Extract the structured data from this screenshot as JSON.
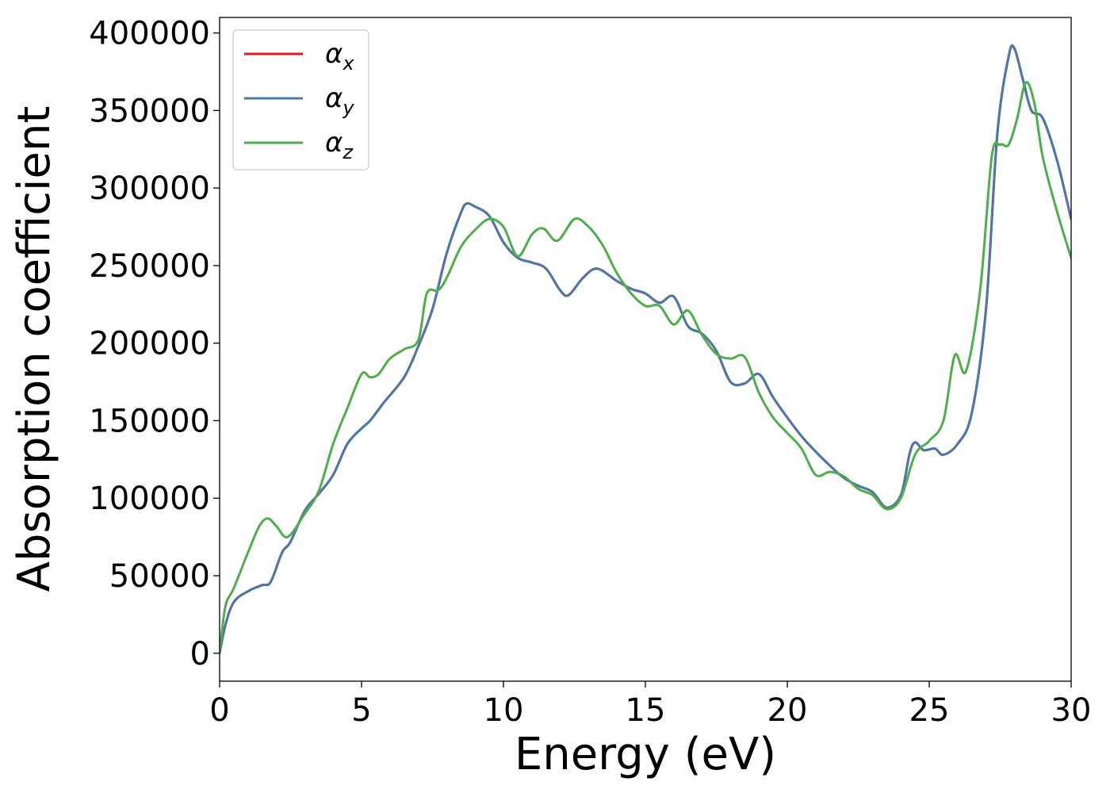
{
  "chart_data": {
    "type": "line",
    "xlabel": "Energy (eV)",
    "ylabel": "Absorption coefficient",
    "xlim": [
      0,
      30
    ],
    "ylim": [
      -18000,
      410000
    ],
    "xticks": [
      0,
      5,
      10,
      15,
      20,
      25,
      30
    ],
    "xtick_labels": [
      "0",
      "5",
      "10",
      "15",
      "20",
      "25",
      "30"
    ],
    "yticks": [
      0,
      50000,
      100000,
      150000,
      200000,
      250000,
      300000,
      350000,
      400000
    ],
    "ytick_labels": [
      "0",
      "50000",
      "100000",
      "150000",
      "200000",
      "250000",
      "300000",
      "350000",
      "400000"
    ],
    "grid": false,
    "legend_position": "top-left",
    "series": [
      {
        "name": "α",
        "subscript": "x",
        "color": "#e41a1c",
        "x": [
          0,
          0.2,
          0.5,
          1.0,
          1.5,
          1.8,
          2.2,
          2.5,
          3.0,
          3.5,
          4.0,
          4.5,
          5.0,
          5.3,
          5.8,
          6.5,
          7.0,
          7.5,
          8.0,
          8.5,
          8.7,
          9.0,
          9.5,
          10.0,
          10.5,
          11.0,
          11.5,
          12.0,
          12.3,
          12.8,
          13.3,
          14.0,
          14.5,
          15.0,
          15.5,
          16.0,
          16.5,
          17.0,
          17.5,
          18.0,
          18.5,
          19.0,
          19.5,
          20.0,
          20.5,
          21.0,
          21.5,
          22.0,
          22.5,
          23.0,
          23.5,
          24.0,
          24.3,
          24.5,
          24.8,
          25.2,
          25.5,
          26.0,
          26.5,
          27.0,
          27.4,
          27.8,
          28.0,
          28.3,
          28.6,
          29.0,
          29.5,
          30.0
        ],
        "y": [
          0,
          18000,
          33000,
          40000,
          44000,
          46000,
          65000,
          72000,
          92000,
          103000,
          115000,
          135000,
          145000,
          150000,
          162000,
          178000,
          198000,
          222000,
          258000,
          284000,
          290000,
          288000,
          282000,
          265000,
          255000,
          252000,
          248000,
          234000,
          231000,
          242000,
          248000,
          240000,
          235000,
          232000,
          226000,
          230000,
          211000,
          206000,
          195000,
          175000,
          174000,
          180000,
          165000,
          152000,
          140000,
          130000,
          121000,
          113000,
          108000,
          104000,
          94000,
          102000,
          128000,
          136000,
          131000,
          132000,
          128000,
          135000,
          155000,
          222000,
          335000,
          385000,
          390000,
          370000,
          350000,
          345000,
          318000,
          280000
        ]
      },
      {
        "name": "α",
        "subscript": "y",
        "color": "#4a78ad",
        "x": [
          0,
          0.2,
          0.5,
          1.0,
          1.5,
          1.8,
          2.2,
          2.5,
          3.0,
          3.5,
          4.0,
          4.5,
          5.0,
          5.3,
          5.8,
          6.5,
          7.0,
          7.5,
          8.0,
          8.5,
          8.7,
          9.0,
          9.5,
          10.0,
          10.5,
          11.0,
          11.5,
          12.0,
          12.3,
          12.8,
          13.3,
          14.0,
          14.5,
          15.0,
          15.5,
          16.0,
          16.5,
          17.0,
          17.5,
          18.0,
          18.5,
          19.0,
          19.5,
          20.0,
          20.5,
          21.0,
          21.5,
          22.0,
          22.5,
          23.0,
          23.5,
          24.0,
          24.3,
          24.5,
          24.8,
          25.2,
          25.5,
          26.0,
          26.5,
          27.0,
          27.4,
          27.8,
          28.0,
          28.3,
          28.6,
          29.0,
          29.5,
          30.0
        ],
        "y": [
          0,
          18000,
          33000,
          40000,
          44000,
          46000,
          65000,
          72000,
          92000,
          103000,
          115000,
          135000,
          145000,
          150000,
          162000,
          178000,
          198000,
          222000,
          258000,
          284000,
          290000,
          288000,
          282000,
          265000,
          255000,
          252000,
          248000,
          234000,
          231000,
          242000,
          248000,
          240000,
          235000,
          232000,
          226000,
          230000,
          211000,
          206000,
          195000,
          175000,
          174000,
          180000,
          165000,
          152000,
          140000,
          130000,
          121000,
          113000,
          108000,
          104000,
          94000,
          102000,
          128000,
          136000,
          131000,
          132000,
          128000,
          135000,
          155000,
          222000,
          335000,
          385000,
          390000,
          370000,
          350000,
          345000,
          318000,
          280000
        ]
      },
      {
        "name": "α",
        "subscript": "z",
        "color": "#4daf4a",
        "x": [
          0,
          0.2,
          0.5,
          1.0,
          1.4,
          1.7,
          2.0,
          2.4,
          3.0,
          3.5,
          4.0,
          4.5,
          5.0,
          5.3,
          5.6,
          6.0,
          6.5,
          7.0,
          7.3,
          7.7,
          8.0,
          8.5,
          9.0,
          9.5,
          10.0,
          10.5,
          11.0,
          11.4,
          11.9,
          12.5,
          13.0,
          13.5,
          14.0,
          14.5,
          15.0,
          15.5,
          16.0,
          16.5,
          17.0,
          17.5,
          18.0,
          18.5,
          19.0,
          19.5,
          20.0,
          20.5,
          21.0,
          21.5,
          22.0,
          22.5,
          23.0,
          23.5,
          24.0,
          24.5,
          25.0,
          25.5,
          25.9,
          26.3,
          26.8,
          27.2,
          27.5,
          27.8,
          28.1,
          28.4,
          28.7,
          29.0,
          29.5,
          30.0
        ],
        "y": [
          0,
          30000,
          42000,
          65000,
          82000,
          87000,
          82000,
          75000,
          90000,
          105000,
          135000,
          158000,
          180000,
          178000,
          180000,
          190000,
          196000,
          202000,
          232000,
          234000,
          242000,
          262000,
          273000,
          280000,
          275000,
          256000,
          270000,
          274000,
          266000,
          280000,
          275000,
          263000,
          245000,
          232000,
          224000,
          224000,
          212000,
          221000,
          205000,
          193000,
          190000,
          191000,
          168000,
          152000,
          142000,
          132000,
          115000,
          117000,
          114000,
          106000,
          102000,
          93000,
          100000,
          128000,
          137000,
          150000,
          192000,
          182000,
          235000,
          320000,
          328000,
          328000,
          345000,
          368000,
          355000,
          320000,
          285000,
          255000
        ]
      }
    ]
  }
}
